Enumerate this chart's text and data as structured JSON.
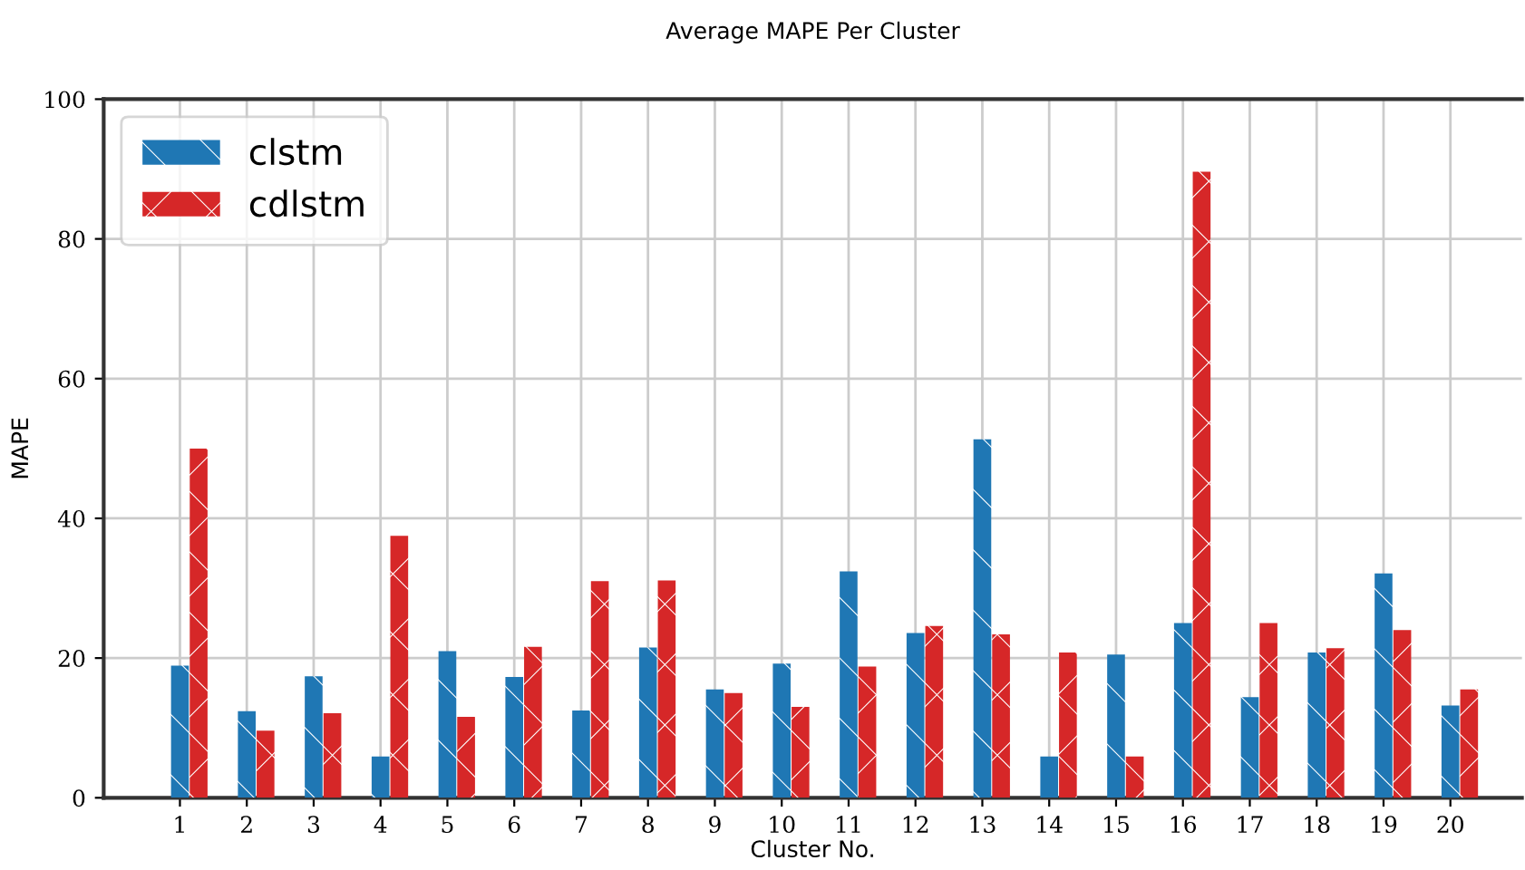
{
  "chart_data": {
    "type": "bar",
    "title": "Average MAPE Per Cluster",
    "xlabel": "Cluster No.",
    "ylabel": "MAPE",
    "categories": [
      "1",
      "2",
      "3",
      "4",
      "5",
      "6",
      "7",
      "8",
      "9",
      "10",
      "11",
      "12",
      "13",
      "14",
      "15",
      "16",
      "17",
      "18",
      "19",
      "20"
    ],
    "series": [
      {
        "name": "clstm",
        "color": "#1f77b4",
        "values": [
          18.9,
          12.4,
          17.4,
          5.9,
          21.0,
          17.3,
          12.5,
          21.5,
          15.5,
          19.2,
          32.4,
          23.6,
          51.3,
          5.9,
          20.5,
          25.0,
          14.4,
          20.8,
          32.1,
          13.2
        ]
      },
      {
        "name": "cdlstm",
        "color": "#d62728",
        "values": [
          50.0,
          9.6,
          12.1,
          37.5,
          11.6,
          21.6,
          31.0,
          31.1,
          15.0,
          13.0,
          18.8,
          24.6,
          23.4,
          20.8,
          5.9,
          89.6,
          25.0,
          21.4,
          24.0,
          15.5
        ]
      }
    ],
    "ylim": [
      0,
      100
    ],
    "yticks": [
      0,
      20,
      40,
      60,
      80,
      100
    ],
    "grid": true,
    "legend": "top left"
  }
}
